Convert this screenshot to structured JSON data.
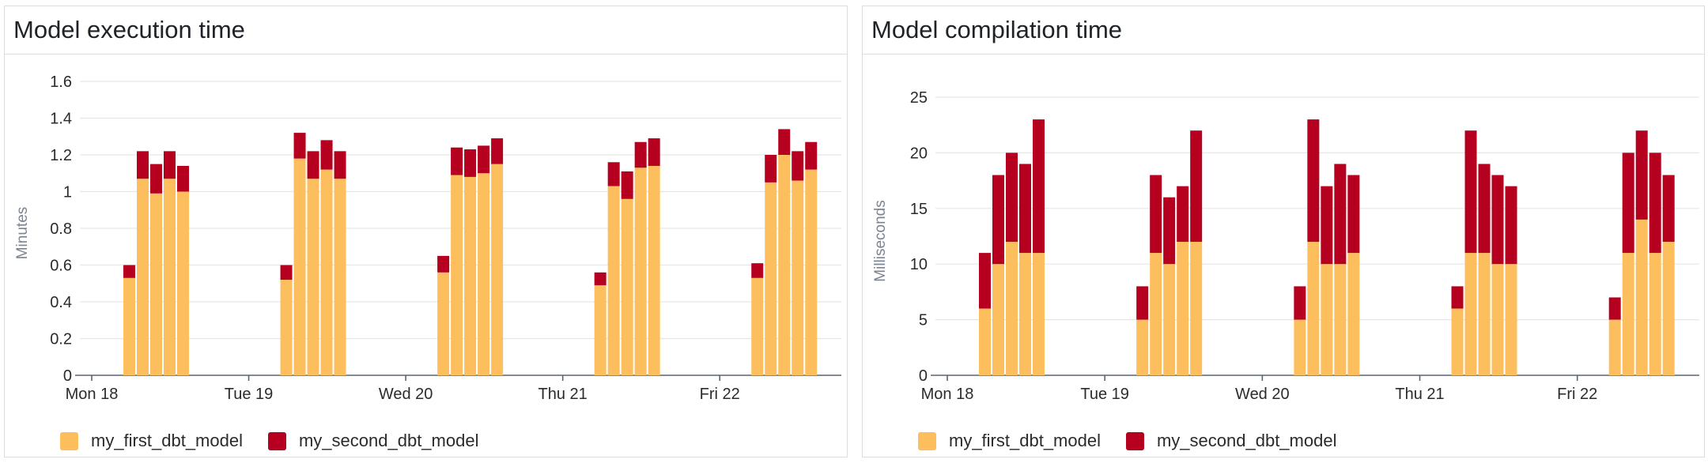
{
  "colors": {
    "first": "#FDBF5E",
    "second": "#B5001F",
    "grid": "#e6e6e6",
    "axis": "#5b6471"
  },
  "legend": {
    "first_label": "my_first_dbt_model",
    "second_label": "my_second_dbt_model"
  },
  "chart_data": [
    {
      "type": "bar",
      "title": "Model execution time",
      "ylabel": "Minutes",
      "xlabel": "",
      "ylim": [
        0,
        1.6
      ],
      "yticks": [
        "0",
        "0.2",
        "0.4",
        "0.6",
        "0.8",
        "1",
        "1.2",
        "1.4",
        "1.6"
      ],
      "grid": true,
      "legend_position": "bottom-left",
      "x_ticks": [
        "Mon 18",
        "Tue 19",
        "Wed 20",
        "Thu 21",
        "Fri 22"
      ],
      "groups": [
        {
          "my_first_dbt_model": [
            0.53,
            1.07,
            0.99,
            1.07,
            1.0
          ],
          "my_second_dbt_model": [
            0.07,
            0.15,
            0.16,
            0.15,
            0.14
          ]
        },
        {
          "my_first_dbt_model": [
            0.52,
            1.18,
            1.07,
            1.12,
            1.07
          ],
          "my_second_dbt_model": [
            0.08,
            0.14,
            0.15,
            0.16,
            0.15
          ]
        },
        {
          "my_first_dbt_model": [
            0.56,
            1.09,
            1.08,
            1.1,
            1.15
          ],
          "my_second_dbt_model": [
            0.09,
            0.15,
            0.15,
            0.15,
            0.14
          ]
        },
        {
          "my_first_dbt_model": [
            0.49,
            1.03,
            0.96,
            1.13,
            1.14
          ],
          "my_second_dbt_model": [
            0.07,
            0.13,
            0.15,
            0.14,
            0.15
          ]
        },
        {
          "my_first_dbt_model": [
            0.53,
            1.05,
            1.2,
            1.06,
            1.12
          ],
          "my_second_dbt_model": [
            0.08,
            0.15,
            0.14,
            0.16,
            0.15
          ]
        }
      ],
      "series": [
        {
          "name": "my_first_dbt_model",
          "color": "#FDBF5E"
        },
        {
          "name": "my_second_dbt_model",
          "color": "#B5001F"
        }
      ]
    },
    {
      "type": "bar",
      "title": "Model compilation time",
      "ylabel": "Milliseconds",
      "xlabel": "",
      "ylim": [
        0,
        25
      ],
      "yticks": [
        "0",
        "5",
        "10",
        "15",
        "20",
        "25"
      ],
      "grid": true,
      "legend_position": "bottom-left",
      "x_ticks": [
        "Mon 18",
        "Tue 19",
        "Wed 20",
        "Thu 21",
        "Fri 22"
      ],
      "groups": [
        {
          "my_first_dbt_model": [
            6,
            10,
            12,
            11,
            11
          ],
          "my_second_dbt_model": [
            5,
            8,
            8,
            8,
            12
          ]
        },
        {
          "my_first_dbt_model": [
            5,
            11,
            10,
            12,
            12
          ],
          "my_second_dbt_model": [
            3,
            7,
            6,
            5,
            10
          ]
        },
        {
          "my_first_dbt_model": [
            5,
            12,
            10,
            10,
            11
          ],
          "my_second_dbt_model": [
            3,
            11,
            7,
            9,
            7
          ]
        },
        {
          "my_first_dbt_model": [
            6,
            11,
            11,
            10,
            10
          ],
          "my_second_dbt_model": [
            2,
            11,
            8,
            8,
            7
          ]
        },
        {
          "my_first_dbt_model": [
            5,
            11,
            14,
            11,
            12
          ],
          "my_second_dbt_model": [
            2,
            9,
            8,
            9,
            6
          ]
        }
      ],
      "series": [
        {
          "name": "my_first_dbt_model",
          "color": "#FDBF5E"
        },
        {
          "name": "my_second_dbt_model",
          "color": "#B5001F"
        }
      ]
    }
  ]
}
